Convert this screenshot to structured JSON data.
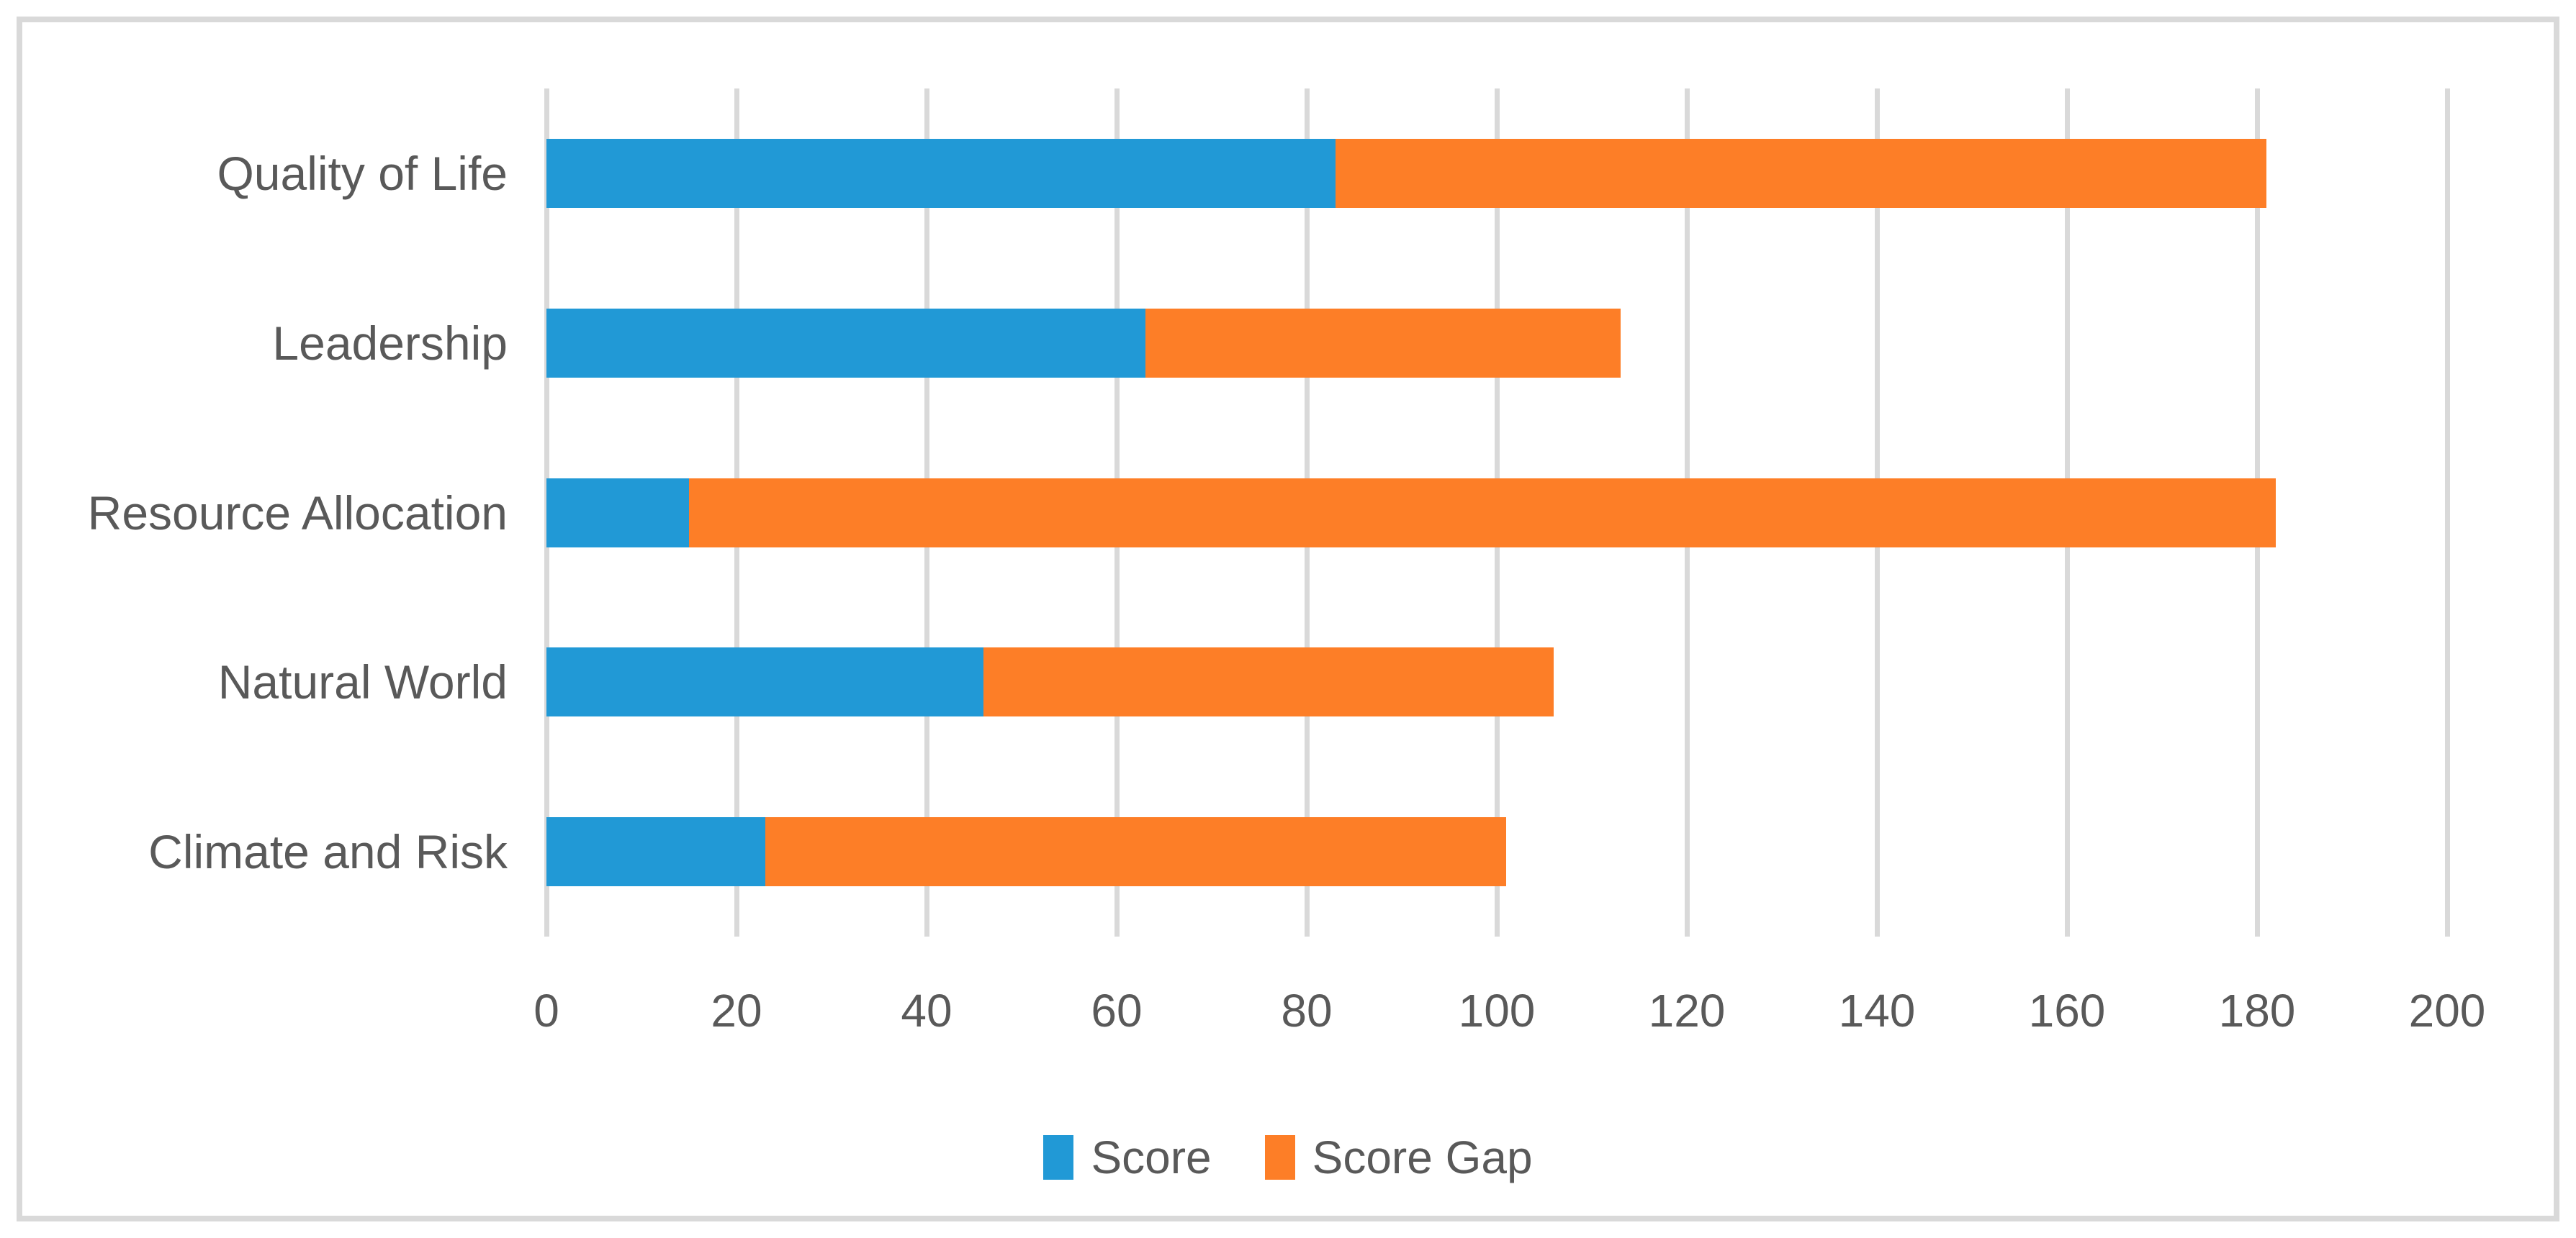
{
  "chart_data": {
    "type": "bar",
    "orientation": "horizontal",
    "stacked": true,
    "title": "",
    "xlabel": "",
    "ylabel": "",
    "categories": [
      "Quality of Life",
      "Leadership",
      "Resource Allocation",
      "Natural World",
      "Climate and Risk"
    ],
    "series": [
      {
        "name": "Score",
        "color": "#2199d6",
        "values": [
          83,
          63,
          15,
          46,
          23
        ]
      },
      {
        "name": "Score Gap",
        "color": "#fd7e27",
        "values": [
          98,
          50,
          167,
          60,
          78
        ]
      }
    ],
    "stack_totals": [
      181,
      113,
      182,
      106,
      101
    ],
    "xlim": [
      0,
      200
    ],
    "xticks": [
      0,
      20,
      40,
      60,
      80,
      100,
      120,
      140,
      160,
      180,
      200
    ],
    "grid": true,
    "legend_position": "bottom"
  },
  "colors": {
    "score": "#2199d6",
    "score_gap": "#fd7e27",
    "gridline": "#d9d9d9",
    "frame_border": "#d9d9d9",
    "text": "#595959",
    "background": "#ffffff"
  }
}
